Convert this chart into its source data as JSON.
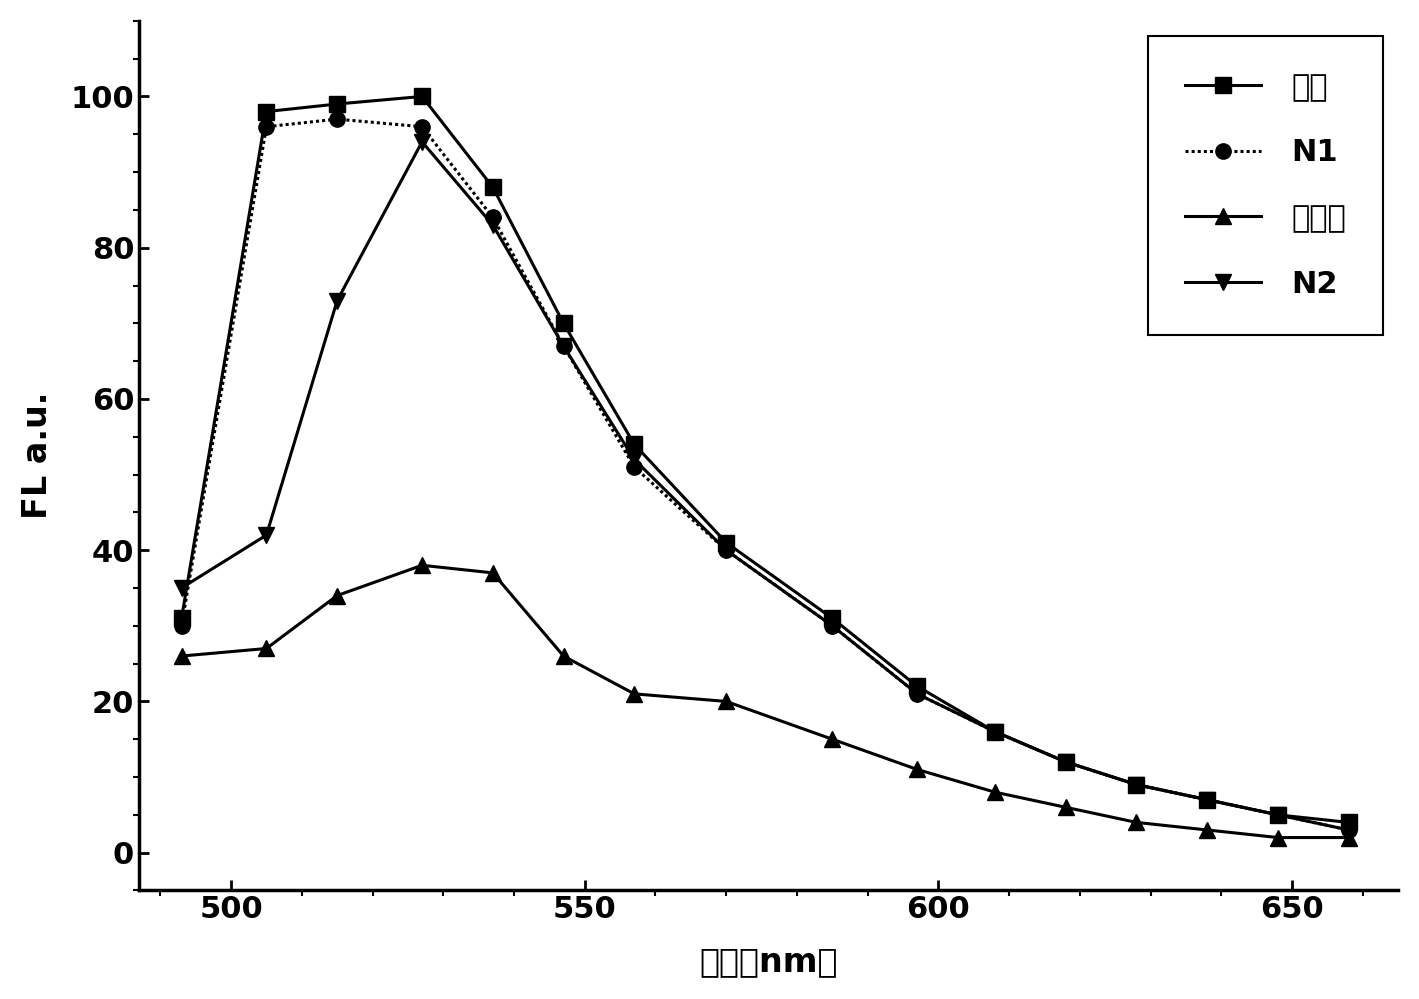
{
  "x": [
    493,
    505,
    515,
    527,
    537,
    547,
    557,
    570,
    585,
    597,
    608,
    618,
    628,
    638,
    648,
    658
  ],
  "kongbai": [
    31,
    98,
    99,
    100,
    88,
    70,
    54,
    41,
    31,
    22,
    16,
    12,
    9,
    7,
    5,
    4
  ],
  "N1": [
    30,
    96,
    97,
    96,
    84,
    67,
    51,
    40,
    30,
    21,
    16,
    12,
    9,
    7,
    5,
    3
  ],
  "cocaine": [
    26,
    27,
    34,
    38,
    37,
    26,
    21,
    20,
    15,
    11,
    8,
    6,
    4,
    3,
    2,
    2
  ],
  "N2": [
    35,
    42,
    73,
    94,
    83,
    67,
    52,
    40,
    30,
    21,
    16,
    12,
    9,
    7,
    5,
    3
  ],
  "legend_labels": [
    "空白",
    "N1",
    "可卡因",
    "N2"
  ],
  "xlabel": "波长（nm）",
  "ylabel": "FL a.u.",
  "xlim": [
    487,
    665
  ],
  "ylim": [
    -5,
    110
  ],
  "yticks": [
    0,
    20,
    40,
    60,
    80,
    100
  ],
  "xticks": [
    500,
    550,
    600,
    650
  ],
  "background_color": "#ffffff",
  "label_fontsize": 24,
  "tick_fontsize": 22,
  "legend_fontsize": 22,
  "linewidth": 2.2,
  "markersize": 11
}
